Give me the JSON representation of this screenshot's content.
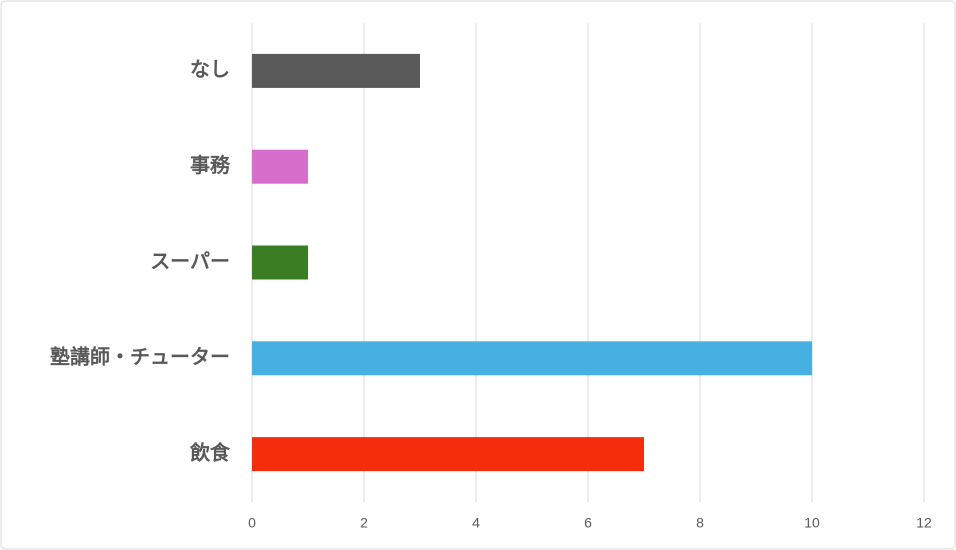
{
  "chart_data": {
    "type": "bar",
    "orientation": "horizontal",
    "categories": [
      "なし",
      "事務",
      "スーパー",
      "塾講師・チューター",
      "飲食"
    ],
    "values": [
      3,
      1,
      1,
      10,
      7
    ],
    "colors": [
      "#595959",
      "#d86ecc",
      "#3a7d22",
      "#46b1e1",
      "#f52d0a"
    ],
    "xlim": [
      0,
      12
    ],
    "xticks": [
      0,
      2,
      4,
      6,
      8,
      10,
      12
    ],
    "grid": true
  }
}
